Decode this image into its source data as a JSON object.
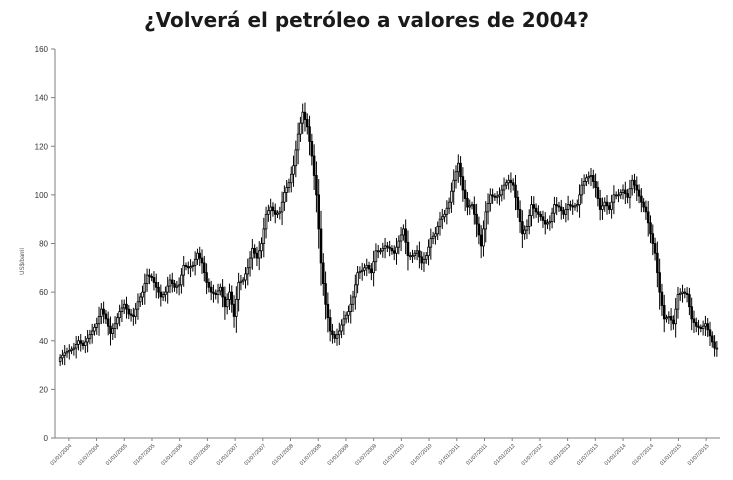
{
  "chart_data": {
    "type": "candlestick",
    "title": "¿Volverá el petróleo a valores de 2004?",
    "ylabel": "US$/barril",
    "ylim": [
      0,
      160
    ],
    "yticks": [
      0,
      20,
      40,
      60,
      80,
      100,
      120,
      140,
      160
    ],
    "grid": false,
    "legend": "none",
    "xtick_labels": [
      "01/01/2004",
      "01/07/2004",
      "01/01/2005",
      "01/07/2005",
      "01/01/2006",
      "01/07/2006",
      "01/01/2007",
      "01/07/2007",
      "01/01/2008",
      "01/07/2008",
      "01/01/2009",
      "01/07/2009",
      "01/01/2010",
      "01/07/2010",
      "01/01/2011",
      "01/07/2011",
      "01/01/2012",
      "01/07/2012",
      "01/01/2013",
      "01/07/2013",
      "01/01/2014",
      "01/07/2014",
      "01/01/2015",
      "01/07/2015"
    ],
    "x_range": [
      "2004-01",
      "2015-12"
    ],
    "monthly_close": [
      33,
      35,
      36,
      37,
      40,
      38,
      41,
      44,
      47,
      53,
      49,
      43,
      47,
      52,
      55,
      51,
      50,
      56,
      60,
      67,
      66,
      62,
      58,
      60,
      65,
      62,
      63,
      71,
      70,
      71,
      76,
      72,
      64,
      60,
      59,
      62,
      54,
      60,
      50,
      64,
      65,
      70,
      78,
      74,
      80,
      92,
      95,
      92,
      93,
      101,
      105,
      112,
      125,
      134,
      128,
      116,
      100,
      72,
      55,
      44,
      41,
      44,
      49,
      52,
      58,
      68,
      69,
      71,
      68,
      77,
      77,
      79,
      78,
      76,
      81,
      86,
      75,
      75,
      77,
      72,
      75,
      82,
      84,
      90,
      92,
      97,
      106,
      113,
      102,
      95,
      96,
      88,
      79,
      93,
      100,
      99,
      100,
      104,
      106,
      104,
      94,
      84,
      87,
      96,
      93,
      91,
      88,
      89,
      96,
      95,
      92,
      96,
      95,
      96,
      104,
      107,
      108,
      103,
      94,
      97,
      94,
      100,
      100,
      102,
      99,
      106,
      102,
      97,
      93,
      84,
      76,
      60,
      49,
      50,
      47,
      59,
      60,
      59,
      49,
      46,
      45,
      47,
      42,
      37
    ]
  }
}
